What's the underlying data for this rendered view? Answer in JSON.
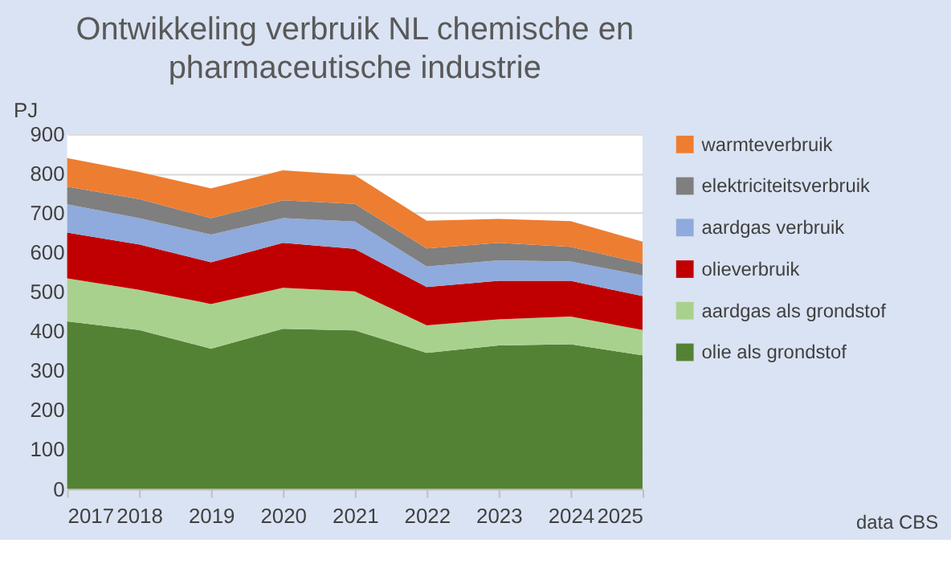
{
  "chart_data": {
    "type": "area",
    "title": "Ontwikkeling verbruik NL chemische en pharmaceutische industrie",
    "ylabel": "PJ",
    "stacked": true,
    "categories": [
      "2017",
      "2018",
      "2019",
      "2020",
      "2021",
      "2022",
      "2023",
      "2024",
      "2025"
    ],
    "series": [
      {
        "name": "olie als grondstof",
        "color": "#548235",
        "values": [
          425,
          403,
          356,
          406,
          402,
          345,
          364,
          367,
          339
        ]
      },
      {
        "name": "aardgas als grondstof",
        "color": "#a9d18e",
        "values": [
          109,
          102,
          113,
          104,
          99,
          70,
          66,
          70,
          64
        ]
      },
      {
        "name": "olieverbruik",
        "color": "#c00000",
        "values": [
          116,
          115,
          106,
          114,
          108,
          97,
          98,
          91,
          86
        ]
      },
      {
        "name": "aardgas verbruik",
        "color": "#8faadc",
        "values": [
          72,
          67,
          70,
          63,
          69,
          52,
          52,
          49,
          52
        ]
      },
      {
        "name": "elektriciteitsverbruik",
        "color": "#7f7f7f",
        "values": [
          45,
          48,
          42,
          45,
          45,
          46,
          44,
          37,
          31
        ]
      },
      {
        "name": "warmteverbruik",
        "color": "#ed7d31",
        "values": [
          72,
          69,
          75,
          76,
          73,
          70,
          61,
          65,
          55
        ]
      }
    ],
    "ylim": [
      0,
      900
    ],
    "yticks": [
      0,
      100,
      200,
      300,
      400,
      500,
      600,
      700,
      800,
      900
    ],
    "grid": "y",
    "legend": "right",
    "annotations": [
      "data CBS"
    ]
  }
}
